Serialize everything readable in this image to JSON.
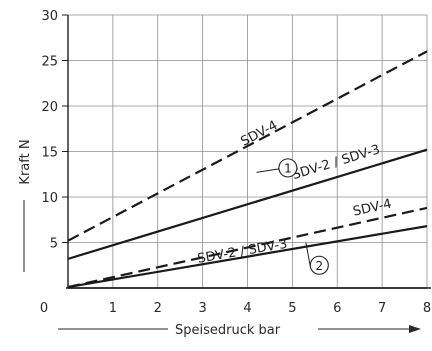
{
  "chart_data": {
    "type": "line",
    "xlabel": "Speisedruck  bar",
    "ylabel": "Kraft N",
    "xlim": [
      0,
      8
    ],
    "ylim": [
      0,
      30
    ],
    "x_ticks": [
      "0",
      "1",
      "2",
      "3",
      "4",
      "5",
      "6",
      "7",
      "8"
    ],
    "y_ticks": [
      "5",
      "10",
      "15",
      "20",
      "25",
      "30"
    ],
    "grid": true,
    "series": [
      {
        "name": "SDV-4",
        "group": "1",
        "style": "dashed",
        "x": [
          0,
          8
        ],
        "y": [
          5.2,
          26.0
        ]
      },
      {
        "name": "SDV-2 / SDV-3",
        "group": "1",
        "style": "solid",
        "x": [
          0,
          8
        ],
        "y": [
          3.2,
          15.2
        ]
      },
      {
        "name": "SDV-4",
        "group": "2",
        "style": "dashed",
        "x": [
          0,
          8
        ],
        "y": [
          0.1,
          8.8
        ]
      },
      {
        "name": "SDV-2 / SDV-3",
        "group": "2",
        "style": "solid",
        "x": [
          0,
          8
        ],
        "y": [
          0.1,
          6.8
        ]
      }
    ],
    "annotations": [
      {
        "text": "SDV-4",
        "x": 4.3,
        "y": 16.6
      },
      {
        "text": "SDV-2 / SDV-3",
        "x": 6.0,
        "y": 13.4
      },
      {
        "text": "SDV-4",
        "x": 6.8,
        "y": 8.4
      },
      {
        "text": "SDV-2 / SDV-3",
        "x": 3.9,
        "y": 3.6
      }
    ],
    "markers": [
      {
        "text": "1",
        "x": 4.9,
        "y": 13.2,
        "target": {
          "x": 4.2,
          "y": 12.7
        }
      },
      {
        "text": "2",
        "x": 5.6,
        "y": 2.5,
        "target": {
          "x": 5.3,
          "y": 5.0
        }
      }
    ]
  }
}
